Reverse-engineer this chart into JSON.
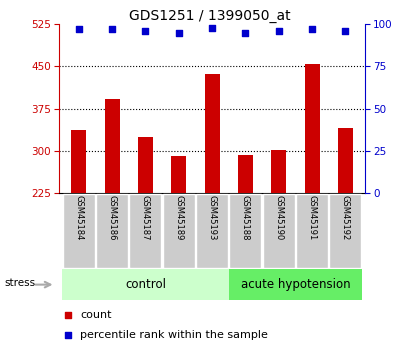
{
  "title": "GDS1251 / 1399050_at",
  "samples": [
    "GSM45184",
    "GSM45186",
    "GSM45187",
    "GSM45189",
    "GSM45193",
    "GSM45188",
    "GSM45190",
    "GSM45191",
    "GSM45192"
  ],
  "counts": [
    338,
    393,
    325,
    291,
    437,
    292,
    302,
    455,
    340
  ],
  "percentiles": [
    97,
    97,
    96,
    95,
    98,
    95,
    96,
    97,
    96
  ],
  "n_control": 5,
  "n_acute": 4,
  "ylim_left": [
    225,
    525
  ],
  "ylim_right": [
    0,
    100
  ],
  "yticks_left": [
    225,
    300,
    375,
    450,
    525
  ],
  "yticks_right": [
    0,
    25,
    50,
    75,
    100
  ],
  "bar_color": "#cc0000",
  "dot_color": "#0000cc",
  "bar_bottom": 225,
  "control_color": "#ccffcc",
  "acute_color": "#66ee66",
  "label_bg_color": "#cccccc",
  "title_color": "#000000",
  "left_axis_color": "#cc0000",
  "right_axis_color": "#0000cc",
  "gridline_color": "#000000",
  "stress_arrow_color": "#aaaaaa",
  "grid_yticks": [
    300,
    375,
    450
  ]
}
